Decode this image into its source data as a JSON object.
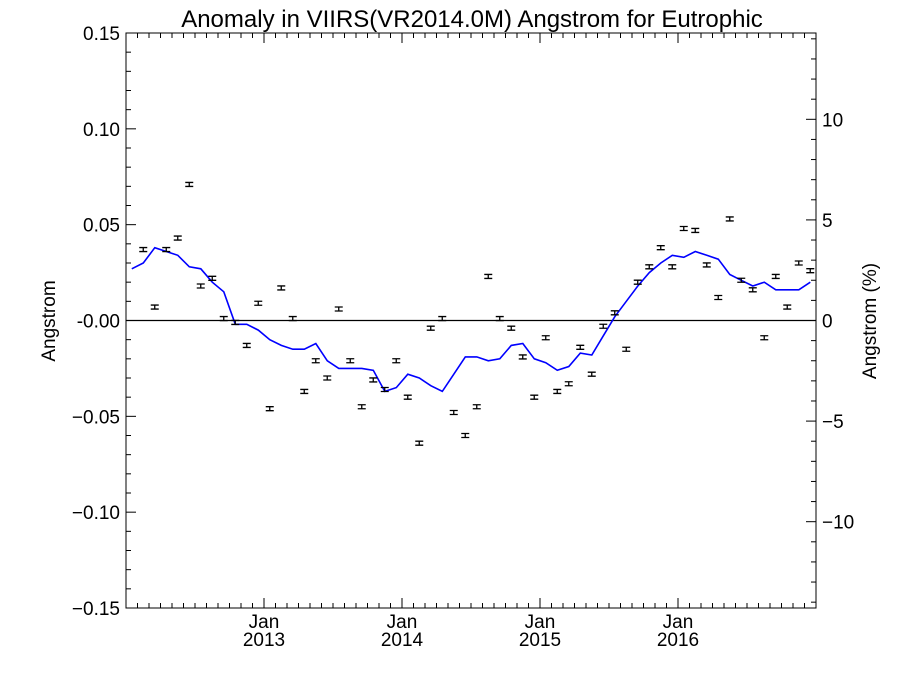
{
  "chart_data": {
    "type": "scatter",
    "title": "Anomaly in VIIRS(VR2014.0M) Angstrom for Eutrophic",
    "ylabel": "Angstrom",
    "ylabel_right": "Angstrom (%)",
    "xlabel": "",
    "ylim": [
      -0.15,
      0.15
    ],
    "ylim_right": [
      -14.29,
      14.29
    ],
    "xlim": [
      "2012-01-01",
      "2016-12-31"
    ],
    "x_unit": "month",
    "grid": false,
    "legend": "none",
    "colors": {
      "points": "#000000",
      "running_mean": "#0000ff",
      "zero_line": "#000000"
    },
    "yticks_left": [
      {
        "value": 0.15,
        "label": "0.15"
      },
      {
        "value": 0.1,
        "label": "0.10"
      },
      {
        "value": 0.05,
        "label": "0.05"
      },
      {
        "value": 0.0,
        "label": "-0.00"
      },
      {
        "value": -0.05,
        "label": "−0.05"
      },
      {
        "value": -0.1,
        "label": "−0.10"
      },
      {
        "value": -0.15,
        "label": "−0.15"
      }
    ],
    "yticks_right": [
      {
        "value": 10,
        "label": "10"
      },
      {
        "value": 5,
        "label": "5"
      },
      {
        "value": 0,
        "label": "0"
      },
      {
        "value": -5,
        "label": "−5"
      },
      {
        "value": -10,
        "label": "−10"
      }
    ],
    "xticks": [
      {
        "date": "2013-01",
        "month": "Jan",
        "year": "2013"
      },
      {
        "date": "2014-01",
        "month": "Jan",
        "year": "2014"
      },
      {
        "date": "2015-01",
        "month": "Jan",
        "year": "2015"
      },
      {
        "date": "2016-01",
        "month": "Jan",
        "year": "2016"
      }
    ],
    "series": [
      {
        "type": "scatter",
        "error_bars": true,
        "points": [
          {
            "x": "2012-02",
            "y": 0.037
          },
          {
            "x": "2012-03",
            "y": 0.007
          },
          {
            "x": "2012-04",
            "y": 0.037
          },
          {
            "x": "2012-05",
            "y": 0.043
          },
          {
            "x": "2012-06",
            "y": 0.071
          },
          {
            "x": "2012-07",
            "y": 0.018
          },
          {
            "x": "2012-08",
            "y": 0.022
          },
          {
            "x": "2012-09",
            "y": 0.001
          },
          {
            "x": "2012-10",
            "y": -0.001
          },
          {
            "x": "2012-11",
            "y": -0.013
          },
          {
            "x": "2012-12",
            "y": 0.009
          },
          {
            "x": "2013-01",
            "y": -0.046
          },
          {
            "x": "2013-02",
            "y": 0.017
          },
          {
            "x": "2013-03",
            "y": 0.001
          },
          {
            "x": "2013-04",
            "y": -0.037
          },
          {
            "x": "2013-05",
            "y": -0.021
          },
          {
            "x": "2013-06",
            "y": -0.03
          },
          {
            "x": "2013-07",
            "y": 0.006
          },
          {
            "x": "2013-08",
            "y": -0.021
          },
          {
            "x": "2013-09",
            "y": -0.045
          },
          {
            "x": "2013-10",
            "y": -0.031
          },
          {
            "x": "2013-11",
            "y": -0.036
          },
          {
            "x": "2013-12",
            "y": -0.021
          },
          {
            "x": "2014-01",
            "y": -0.04
          },
          {
            "x": "2014-02",
            "y": -0.064
          },
          {
            "x": "2014-03",
            "y": -0.004
          },
          {
            "x": "2014-04",
            "y": 0.001
          },
          {
            "x": "2014-05",
            "y": -0.048
          },
          {
            "x": "2014-06",
            "y": -0.06
          },
          {
            "x": "2014-07",
            "y": -0.045
          },
          {
            "x": "2014-08",
            "y": 0.023
          },
          {
            "x": "2014-09",
            "y": 0.001
          },
          {
            "x": "2014-10",
            "y": -0.004
          },
          {
            "x": "2014-11",
            "y": -0.019
          },
          {
            "x": "2014-12",
            "y": -0.04
          },
          {
            "x": "2015-01",
            "y": -0.009
          },
          {
            "x": "2015-02",
            "y": -0.037
          },
          {
            "x": "2015-03",
            "y": -0.033
          },
          {
            "x": "2015-04",
            "y": -0.014
          },
          {
            "x": "2015-05",
            "y": -0.028
          },
          {
            "x": "2015-06",
            "y": -0.003
          },
          {
            "x": "2015-07",
            "y": 0.004
          },
          {
            "x": "2015-08",
            "y": -0.015
          },
          {
            "x": "2015-09",
            "y": 0.02
          },
          {
            "x": "2015-10",
            "y": 0.028
          },
          {
            "x": "2015-11",
            "y": 0.038
          },
          {
            "x": "2015-12",
            "y": 0.028
          },
          {
            "x": "2016-01",
            "y": 0.048
          },
          {
            "x": "2016-02",
            "y": 0.047
          },
          {
            "x": "2016-03",
            "y": 0.029
          },
          {
            "x": "2016-04",
            "y": 0.012
          },
          {
            "x": "2016-05",
            "y": 0.053
          },
          {
            "x": "2016-06",
            "y": 0.021
          },
          {
            "x": "2016-07",
            "y": 0.016
          },
          {
            "x": "2016-08",
            "y": -0.009
          },
          {
            "x": "2016-09",
            "y": 0.023
          },
          {
            "x": "2016-10",
            "y": 0.007
          },
          {
            "x": "2016-11",
            "y": 0.03
          },
          {
            "x": "2016-12",
            "y": 0.026
          }
        ]
      },
      {
        "type": "line",
        "points": [
          {
            "x": "2012-01",
            "y": 0.027
          },
          {
            "x": "2012-02",
            "y": 0.03
          },
          {
            "x": "2012-03",
            "y": 0.038
          },
          {
            "x": "2012-04",
            "y": 0.036
          },
          {
            "x": "2012-05",
            "y": 0.034
          },
          {
            "x": "2012-06",
            "y": 0.028
          },
          {
            "x": "2012-07",
            "y": 0.027
          },
          {
            "x": "2012-08",
            "y": 0.02
          },
          {
            "x": "2012-09",
            "y": 0.015
          },
          {
            "x": "2012-10",
            "y": -0.002
          },
          {
            "x": "2012-11",
            "y": -0.002
          },
          {
            "x": "2012-12",
            "y": -0.005
          },
          {
            "x": "2013-01",
            "y": -0.01
          },
          {
            "x": "2013-02",
            "y": -0.013
          },
          {
            "x": "2013-03",
            "y": -0.015
          },
          {
            "x": "2013-04",
            "y": -0.015
          },
          {
            "x": "2013-05",
            "y": -0.012
          },
          {
            "x": "2013-06",
            "y": -0.021
          },
          {
            "x": "2013-07",
            "y": -0.025
          },
          {
            "x": "2013-08",
            "y": -0.025
          },
          {
            "x": "2013-09",
            "y": -0.025
          },
          {
            "x": "2013-10",
            "y": -0.026
          },
          {
            "x": "2013-11",
            "y": -0.037
          },
          {
            "x": "2013-12",
            "y": -0.035
          },
          {
            "x": "2014-01",
            "y": -0.028
          },
          {
            "x": "2014-02",
            "y": -0.03
          },
          {
            "x": "2014-03",
            "y": -0.034
          },
          {
            "x": "2014-04",
            "y": -0.037
          },
          {
            "x": "2014-05",
            "y": -0.028
          },
          {
            "x": "2014-06",
            "y": -0.019
          },
          {
            "x": "2014-07",
            "y": -0.019
          },
          {
            "x": "2014-08",
            "y": -0.021
          },
          {
            "x": "2014-09",
            "y": -0.02
          },
          {
            "x": "2014-10",
            "y": -0.013
          },
          {
            "x": "2014-11",
            "y": -0.012
          },
          {
            "x": "2014-12",
            "y": -0.02
          },
          {
            "x": "2015-01",
            "y": -0.022
          },
          {
            "x": "2015-02",
            "y": -0.026
          },
          {
            "x": "2015-03",
            "y": -0.024
          },
          {
            "x": "2015-04",
            "y": -0.017
          },
          {
            "x": "2015-05",
            "y": -0.018
          },
          {
            "x": "2015-06",
            "y": -0.008
          },
          {
            "x": "2015-07",
            "y": 0.002
          },
          {
            "x": "2015-08",
            "y": 0.01
          },
          {
            "x": "2015-09",
            "y": 0.018
          },
          {
            "x": "2015-10",
            "y": 0.025
          },
          {
            "x": "2015-11",
            "y": 0.03
          },
          {
            "x": "2015-12",
            "y": 0.034
          },
          {
            "x": "2016-01",
            "y": 0.033
          },
          {
            "x": "2016-02",
            "y": 0.036
          },
          {
            "x": "2016-03",
            "y": 0.034
          },
          {
            "x": "2016-04",
            "y": 0.032
          },
          {
            "x": "2016-05",
            "y": 0.024
          },
          {
            "x": "2016-06",
            "y": 0.021
          },
          {
            "x": "2016-07",
            "y": 0.018
          },
          {
            "x": "2016-08",
            "y": 0.02
          },
          {
            "x": "2016-09",
            "y": 0.016
          },
          {
            "x": "2016-10",
            "y": 0.016
          },
          {
            "x": "2016-11",
            "y": 0.016
          },
          {
            "x": "2016-12",
            "y": 0.02
          }
        ]
      }
    ]
  }
}
